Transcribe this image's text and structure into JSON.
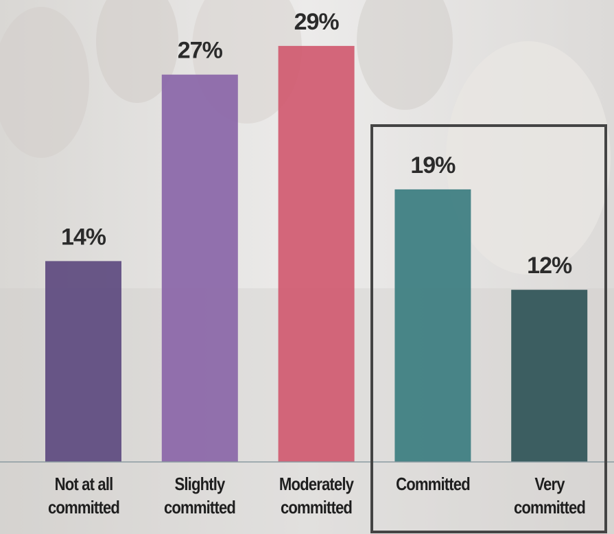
{
  "chart_data": {
    "type": "bar",
    "categories": [
      "Not at all\ncommitted",
      "Slightly\ncommitted",
      "Moderately\ncommitted",
      "Committed",
      "Very\ncommitted"
    ],
    "values": [
      14,
      27,
      29,
      19,
      12
    ],
    "value_labels": [
      "14%",
      "27%",
      "29%",
      "19%",
      "12%"
    ],
    "colors": [
      "#5d4a7f",
      "#8a66a8",
      "#d05a70",
      "#3b7d80",
      "#2f5457"
    ]
  }
}
